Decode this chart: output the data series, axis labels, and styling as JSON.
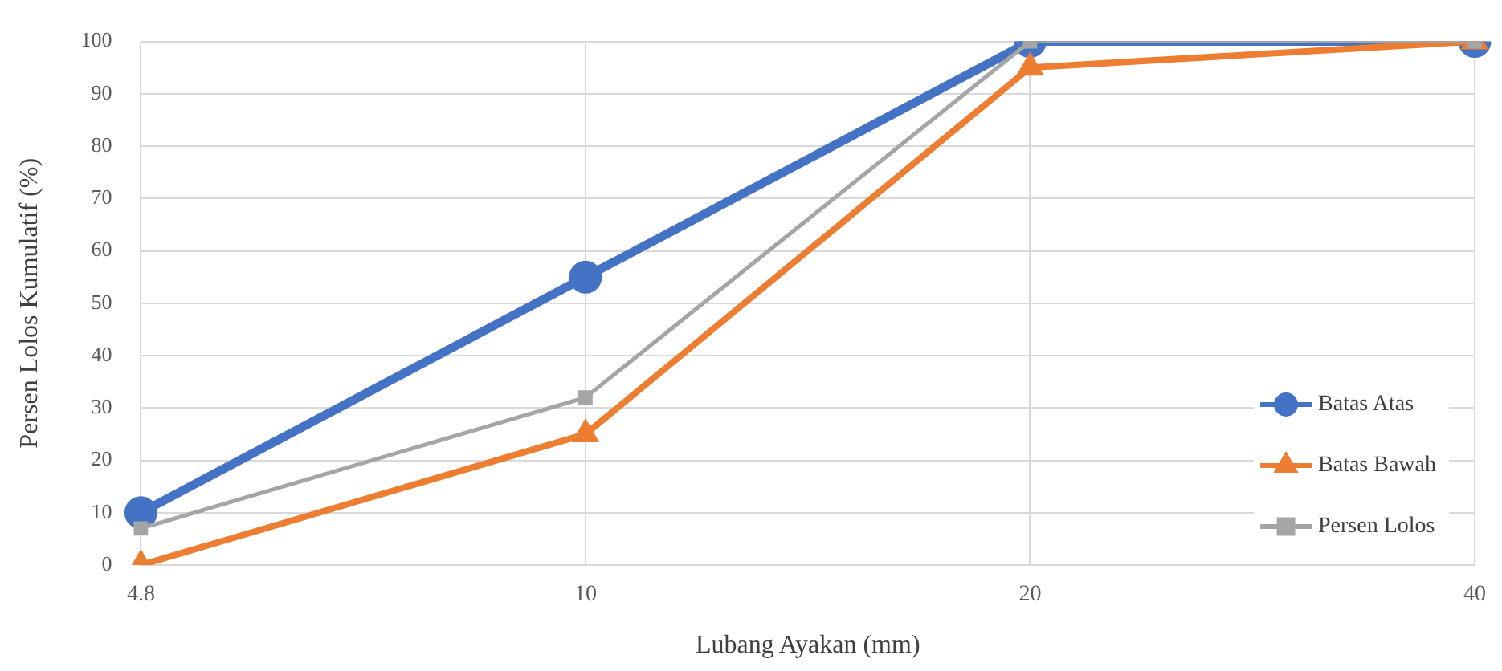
{
  "chart_data": {
    "type": "line",
    "xlabel": "Lubang Ayakan (mm)",
    "ylabel": "Persen Lolos Kumulatif (%)",
    "categories": [
      "4.8",
      "10",
      "20",
      "40"
    ],
    "series": [
      {
        "name": "Batas Atas",
        "color": "#4472c4",
        "marker": "circle",
        "values": [
          10,
          55,
          100,
          100
        ]
      },
      {
        "name": "Batas Bawah",
        "color": "#ed7d31",
        "marker": "triangle",
        "values": [
          0,
          25,
          95,
          100
        ]
      },
      {
        "name": "Persen Lolos",
        "color": "#a5a5a5",
        "marker": "square",
        "values": [
          7,
          32,
          100,
          100
        ]
      }
    ],
    "ylim": [
      0,
      100
    ],
    "yticks": [
      0,
      10,
      20,
      30,
      40,
      50,
      60,
      70,
      80,
      90,
      100
    ],
    "grid": true,
    "legend": "bottom right"
  }
}
